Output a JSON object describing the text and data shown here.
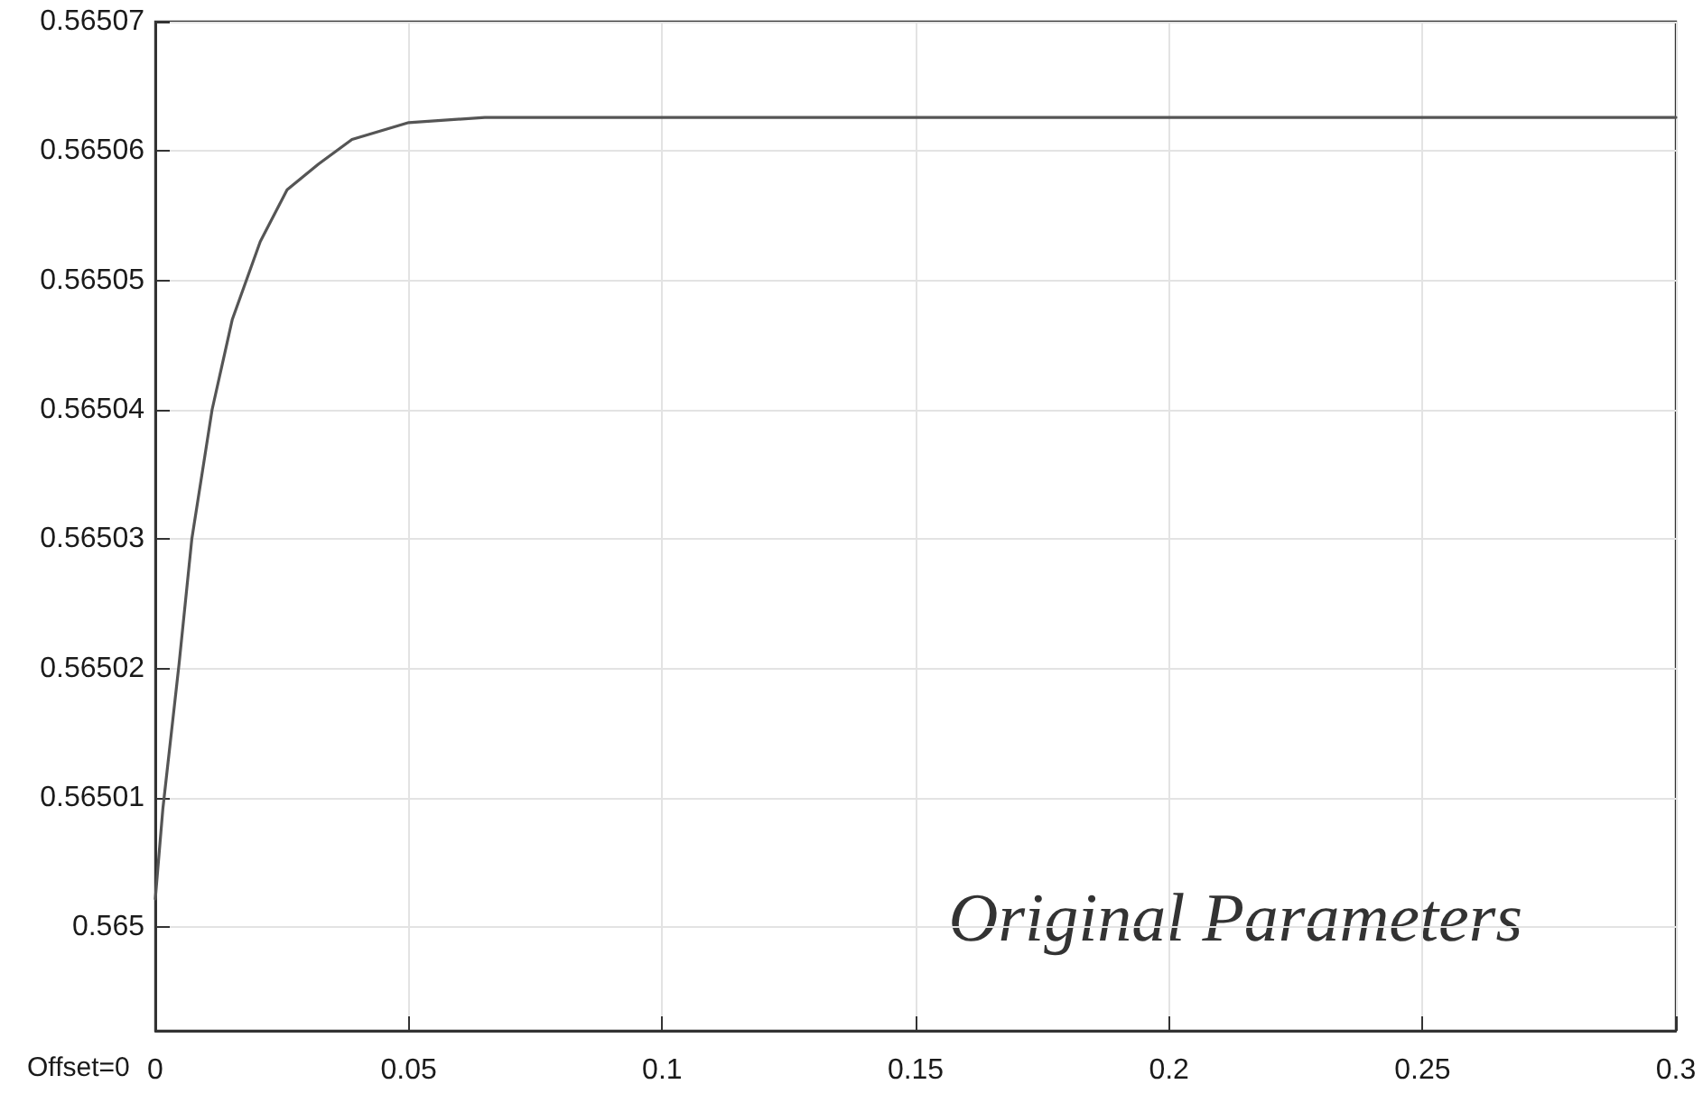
{
  "chart_data": {
    "type": "line",
    "x": [
      0,
      0.0015,
      0.0047,
      0.0072,
      0.0112,
      0.0152,
      0.0207,
      0.026,
      0.0322,
      0.0388,
      0.05,
      0.065,
      0.08,
      0.3
    ],
    "series": [
      {
        "color": "#555555",
        "values": [
          0.5650022,
          0.5650092,
          0.5650204,
          0.56503,
          0.56504,
          0.565047,
          0.565053,
          0.565057,
          0.565059,
          0.5650609,
          0.5650622,
          0.5650626,
          0.5650626,
          0.5650626
        ]
      }
    ],
    "xlim": [
      0,
      0.3
    ],
    "xticks": [
      0,
      0.05,
      0.1,
      0.15,
      0.2,
      0.25,
      0.3
    ],
    "ylim": [
      0.564992,
      0.56507
    ],
    "yticks": [
      0.565,
      0.56501,
      0.56502,
      0.56503,
      0.56504,
      0.56505,
      0.56506,
      0.56507
    ],
    "annotations": [
      "Original Parameters",
      "Offset=0"
    ],
    "grid": true,
    "marker": "none",
    "line_style": "solid"
  }
}
